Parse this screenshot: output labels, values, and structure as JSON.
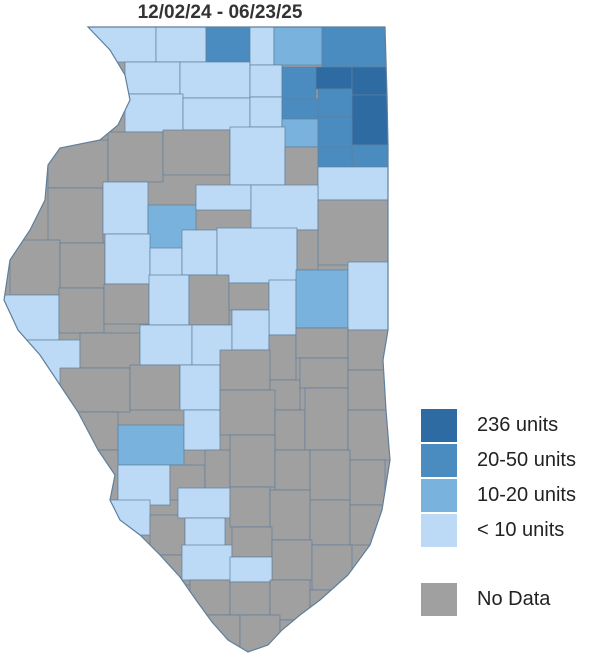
{
  "title": "12/02/24 - 06/23/25",
  "legend": {
    "items": [
      {
        "label": "236 units",
        "color": "#2f6ba3"
      },
      {
        "label": "20-50 units",
        "color": "#4a8cc0"
      },
      {
        "label": "10-20 units",
        "color": "#79b2dd"
      },
      {
        "label": "< 10 units",
        "color": "#bcdaf5"
      }
    ],
    "nodata": {
      "label": "No Data",
      "color": "#a0a0a0"
    }
  },
  "colors": {
    "border": "#5f7f9c",
    "nodata": "#a0a0a0",
    "lt10": "#bcdaf5",
    "10to20": "#79b2dd",
    "20to50": "#4a8cc0",
    "236": "#2f6ba3"
  }
}
